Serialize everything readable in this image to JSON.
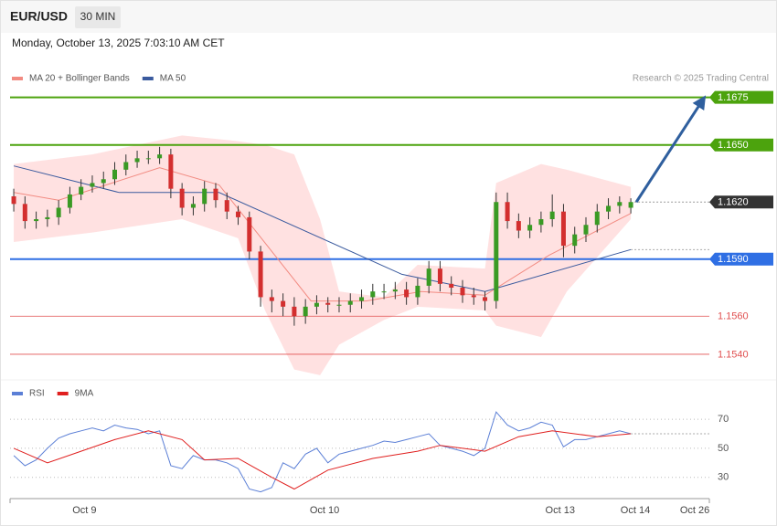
{
  "header": {
    "symbol": "EUR/USD",
    "timeframe": "30 MIN",
    "datetime": "Monday, October 13, 2025 7:03:10 AM CET"
  },
  "chart_data": [
    {
      "type": "candlestick",
      "credit": "Research © 2025 Trading Central",
      "up_color": "#3a9a24",
      "down_color": "#d32f2f",
      "xlim": [
        -0.33,
        62
      ],
      "ylim": [
        1.1527,
        1.1683
      ],
      "open": [
        1.1623,
        1.1619,
        1.161,
        1.1611,
        1.1612,
        1.1617,
        1.1624,
        1.1628,
        1.163,
        1.1632,
        1.1637,
        1.1641,
        1.1643,
        1.1643,
        1.1645,
        1.1627,
        1.1617,
        1.1619,
        1.1627,
        1.1621,
        1.1615,
        1.1612,
        1.1594,
        1.157,
        1.1568,
        1.1565,
        1.156,
        1.1565,
        1.1567,
        1.1566,
        1.1566,
        1.1568,
        1.157,
        1.1573,
        1.1573,
        1.1574,
        1.157,
        1.1576,
        1.1585,
        1.1577,
        1.1575,
        1.1571,
        1.157,
        1.1568,
        1.162,
        1.161,
        1.1605,
        1.1608,
        1.1611,
        1.1615,
        1.1597,
        1.1603,
        1.1608,
        1.1615,
        1.1618,
        1.1617
      ],
      "high": [
        1.1627,
        1.1623,
        1.1615,
        1.1616,
        1.1621,
        1.1628,
        1.1632,
        1.1634,
        1.1636,
        1.1641,
        1.1645,
        1.1647,
        1.1647,
        1.1649,
        1.1648,
        1.163,
        1.1623,
        1.1631,
        1.163,
        1.1625,
        1.1618,
        1.1615,
        1.1597,
        1.1574,
        1.1572,
        1.157,
        1.1569,
        1.1571,
        1.157,
        1.157,
        1.1572,
        1.1574,
        1.1577,
        1.1577,
        1.1578,
        1.1578,
        1.158,
        1.1589,
        1.1589,
        1.1581,
        1.1579,
        1.1575,
        1.1573,
        1.1625,
        1.1625,
        1.1614,
        1.1612,
        1.1615,
        1.1624,
        1.1619,
        1.1607,
        1.1612,
        1.1619,
        1.1622,
        1.1623,
        1.1622
      ],
      "low": [
        1.1615,
        1.1606,
        1.1606,
        1.1607,
        1.1608,
        1.1614,
        1.1621,
        1.1625,
        1.1627,
        1.1629,
        1.1634,
        1.1638,
        1.164,
        1.164,
        1.1622,
        1.1613,
        1.1613,
        1.1615,
        1.1617,
        1.1611,
        1.1608,
        1.159,
        1.1565,
        1.1562,
        1.156,
        1.1555,
        1.1556,
        1.1561,
        1.1562,
        1.1562,
        1.1562,
        1.1564,
        1.1566,
        1.1569,
        1.1569,
        1.1566,
        1.1566,
        1.1572,
        1.1573,
        1.1571,
        1.1567,
        1.1566,
        1.1563,
        1.1564,
        1.1606,
        1.1601,
        1.1601,
        1.1604,
        1.1607,
        1.1591,
        1.1593,
        1.1599,
        1.1604,
        1.1611,
        1.1614,
        1.1614
      ],
      "close": [
        1.1619,
        1.161,
        1.1611,
        1.1612,
        1.1617,
        1.1624,
        1.1628,
        1.163,
        1.1632,
        1.1637,
        1.1641,
        1.1643,
        1.1643,
        1.1645,
        1.1627,
        1.1617,
        1.1619,
        1.1627,
        1.1621,
        1.1615,
        1.1612,
        1.1594,
        1.157,
        1.1568,
        1.1565,
        1.156,
        1.1565,
        1.1567,
        1.1566,
        1.1566,
        1.1568,
        1.157,
        1.1573,
        1.1573,
        1.1574,
        1.157,
        1.1576,
        1.1585,
        1.1577,
        1.1575,
        1.1571,
        1.157,
        1.1568,
        1.162,
        1.161,
        1.1605,
        1.1608,
        1.1611,
        1.1615,
        1.1597,
        1.1603,
        1.1608,
        1.1615,
        1.1618,
        1.162,
        1.162
      ],
      "bands": {
        "color": "#ffe1e1",
        "x": [
          0,
          7,
          15,
          20,
          22.4,
          25,
          27.3,
          29,
          33,
          36,
          42,
          43,
          47,
          49.3,
          55
        ],
        "upper": [
          1.164,
          1.1645,
          1.1655,
          1.1652,
          1.165,
          1.1645,
          1.1611,
          1.1573,
          1.157,
          1.1587,
          1.1585,
          1.163,
          1.164,
          1.1637,
          1.1628
        ],
        "lower": [
          1.1599,
          1.1604,
          1.1611,
          1.1601,
          1.1563,
          1.1532,
          1.1529,
          1.1545,
          1.1558,
          1.1565,
          1.1563,
          1.1555,
          1.1549,
          1.1573,
          1.1611
        ]
      },
      "series": [
        {
          "name": "MA 20 + Bollinger Bands",
          "color": "#f28b82",
          "x": [
            0,
            4,
            13,
            18.3,
            26.5,
            31.4,
            36.3,
            42,
            47.7,
            55
          ],
          "values": [
            1.1625,
            1.1621,
            1.1638,
            1.1629,
            1.1568,
            1.1568,
            1.1573,
            1.1571,
            1.1592,
            1.1614
          ]
        },
        {
          "name": "MA 50",
          "color": "#3a5a9e",
          "x": [
            0,
            9.4,
            18.3,
            34.6,
            42,
            55
          ],
          "values": [
            1.1639,
            1.1625,
            1.1625,
            1.1582,
            1.1573,
            1.1595
          ]
        }
      ],
      "levels": [
        {
          "value": 1.1675,
          "label": "1.1675",
          "color": "#4ca30d",
          "style": "solid",
          "box": true
        },
        {
          "value": 1.165,
          "label": "1.1650",
          "color": "#4ca30d",
          "style": "solid",
          "box": true
        },
        {
          "value": 1.162,
          "label": "1.1620",
          "color": "#333333",
          "style": "dotted",
          "box": true
        },
        {
          "value": 1.159,
          "label": "1.1590",
          "color": "#2f6fe4",
          "style": "solid",
          "box": true
        },
        {
          "value": 1.156,
          "label": "1.1560",
          "color": "#e05050",
          "style": "thin",
          "box": false
        },
        {
          "value": 1.154,
          "label": "1.1540",
          "color": "#e05050",
          "style": "thin",
          "box": false
        }
      ],
      "xticks": [
        {
          "value": 6.3,
          "label": "Oct 9"
        },
        {
          "value": 27.7,
          "label": "Oct 10"
        },
        {
          "value": 48.7,
          "label": "Oct 13"
        },
        {
          "value": 55.4,
          "label": "Oct 14"
        },
        {
          "value": 60.7,
          "label": "Oct 26"
        }
      ]
    },
    {
      "type": "line",
      "xlim": [
        -0.33,
        62
      ],
      "ylim": [
        16,
        82
      ],
      "yticks": [
        70,
        50,
        30
      ],
      "series": [
        {
          "name": "RSI",
          "color": "#5b7fd6",
          "values": [
            45,
            38,
            42,
            50,
            57,
            60,
            62,
            64,
            62,
            66,
            64,
            63,
            60,
            62,
            38,
            36,
            45,
            42,
            42,
            40,
            36,
            22,
            20,
            23,
            40,
            36,
            46,
            50,
            40,
            46,
            48,
            50,
            52,
            55,
            54,
            56,
            58,
            60,
            52,
            50,
            48,
            45,
            50,
            75,
            66,
            62,
            64,
            68,
            66,
            51,
            56,
            56,
            58,
            60,
            62,
            60
          ]
        },
        {
          "name": "9MA",
          "color": "#e0201f",
          "x": [
            0,
            3,
            6,
            9,
            12,
            15,
            17,
            20,
            23,
            25,
            28,
            32,
            36,
            38,
            42,
            45,
            48,
            52,
            55
          ],
          "values": [
            50,
            40,
            48,
            56,
            62,
            56,
            42,
            43,
            30,
            22,
            35,
            43,
            48,
            52,
            48,
            58,
            62,
            58,
            60
          ]
        }
      ]
    }
  ]
}
